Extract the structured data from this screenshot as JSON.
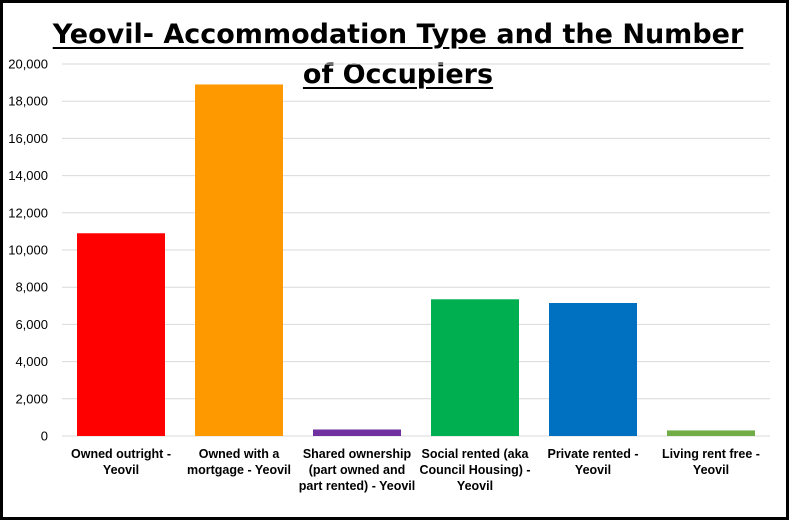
{
  "chart_data": {
    "type": "bar",
    "title_line1": "Yeovil- Accommodation Type and the Number",
    "title_line2": "of Occupiers",
    "categories": [
      "Owned outright - Yeovil",
      "Owned with a mortgage - Yeovil",
      "Shared ownership (part owned and part rented) - Yeovil",
      "Social rented (aka Council Housing) - Yeovil",
      "Private rented - Yeovil",
      "Living rent free - Yeovil"
    ],
    "values": [
      10900,
      18900,
      350,
      7350,
      7150,
      300
    ],
    "colors": [
      "#ff0000",
      "#ff9900",
      "#7030a0",
      "#00b050",
      "#0070c0",
      "#70ad47"
    ],
    "ylim": [
      0,
      20000
    ],
    "yticks": [
      0,
      2000,
      4000,
      6000,
      8000,
      10000,
      12000,
      14000,
      16000,
      18000,
      20000
    ],
    "ytick_labels": [
      "0",
      "2,000",
      "4,000",
      "6,000",
      "8,000",
      "10,000",
      "12,000",
      "14,000",
      "16,000",
      "18,000",
      "20,000"
    ],
    "grid": true,
    "legend": "none"
  }
}
